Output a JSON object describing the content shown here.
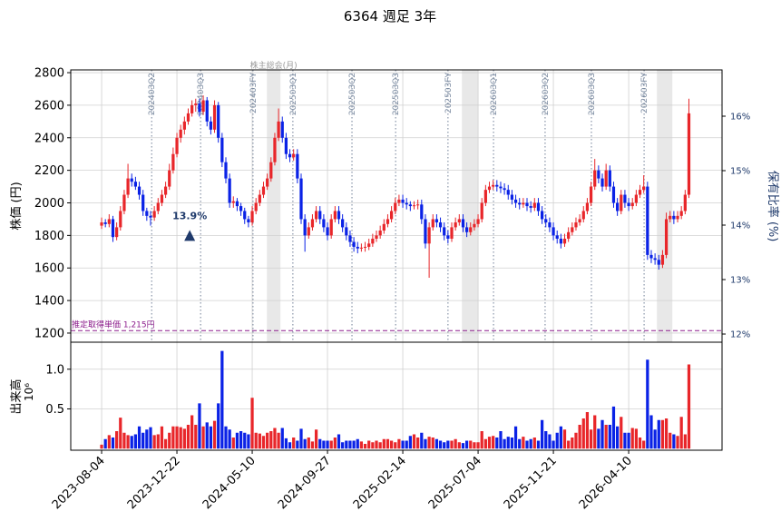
{
  "chart_data": {
    "type": "candlestick",
    "title": "6364 週足 3年",
    "ylabel": "株価 (円)",
    "y2label": "保有比率 (%)",
    "grid": true,
    "up_color": "#e8262a",
    "down_color": "#0a22e6",
    "xlim": [
      -8.2,
      164.8
    ],
    "xticks": [
      {
        "value": 0,
        "label": "2023-08-04"
      },
      {
        "value": 20,
        "label": "2023-12-22"
      },
      {
        "value": 40,
        "label": "2024-05-10"
      },
      {
        "value": 60,
        "label": "2024-09-27"
      },
      {
        "value": 80,
        "label": "2025-02-14"
      },
      {
        "value": 100,
        "label": "2025-07-04"
      },
      {
        "value": 120,
        "label": "2025-11-21"
      },
      {
        "value": 140,
        "label": "2026-04-10"
      }
    ],
    "ylim": [
      1144,
      2817
    ],
    "yticks": [
      1200,
      1400,
      1600,
      1800,
      2000,
      2200,
      2400,
      2600,
      2800
    ],
    "y2lim": [
      11.85,
      16.85
    ],
    "y2ticks": [
      {
        "value": 12,
        "label": "12%"
      },
      {
        "value": 13,
        "label": "13%"
      },
      {
        "value": 14,
        "label": "14%"
      },
      {
        "value": 15,
        "label": "15%"
      },
      {
        "value": 16,
        "label": "16%"
      }
    ],
    "ohlc": [
      [
        1860,
        1910,
        1840,
        1880
      ],
      [
        1880,
        1900,
        1850,
        1870
      ],
      [
        1870,
        1930,
        1850,
        1900
      ],
      [
        1900,
        1920,
        1760,
        1790
      ],
      [
        1790,
        1880,
        1770,
        1850
      ],
      [
        1850,
        1980,
        1830,
        1950
      ],
      [
        1950,
        2080,
        1930,
        2050
      ],
      [
        2050,
        2240,
        2030,
        2150
      ],
      [
        2150,
        2180,
        2100,
        2130
      ],
      [
        2130,
        2160,
        2080,
        2100
      ],
      [
        2100,
        2130,
        2020,
        2050
      ],
      [
        2050,
        2080,
        1920,
        1950
      ],
      [
        1950,
        1970,
        1890,
        1920
      ],
      [
        1920,
        1950,
        1860,
        1910
      ],
      [
        1910,
        1980,
        1890,
        1950
      ],
      [
        1950,
        2030,
        1930,
        2000
      ],
      [
        2000,
        2080,
        1980,
        2050
      ],
      [
        2050,
        2130,
        2030,
        2100
      ],
      [
        2100,
        2240,
        2080,
        2200
      ],
      [
        2200,
        2340,
        2180,
        2300
      ],
      [
        2300,
        2430,
        2280,
        2400
      ],
      [
        2400,
        2480,
        2370,
        2450
      ],
      [
        2450,
        2530,
        2420,
        2500
      ],
      [
        2500,
        2580,
        2480,
        2550
      ],
      [
        2550,
        2630,
        2530,
        2600
      ],
      [
        2600,
        2640,
        2560,
        2610
      ],
      [
        2610,
        2640,
        2530,
        2560
      ],
      [
        2560,
        2660,
        2540,
        2630
      ],
      [
        2630,
        2650,
        2470,
        2500
      ],
      [
        2500,
        2530,
        2420,
        2450
      ],
      [
        2450,
        2630,
        2430,
        2600
      ],
      [
        2600,
        2620,
        2370,
        2400
      ],
      [
        2400,
        2430,
        2220,
        2250
      ],
      [
        2250,
        2280,
        2120,
        2150
      ],
      [
        2150,
        2180,
        1970,
        2000
      ],
      [
        2000,
        2040,
        1970,
        2010
      ],
      [
        2010,
        2030,
        1950,
        1980
      ],
      [
        1980,
        2000,
        1920,
        1950
      ],
      [
        1950,
        1970,
        1870,
        1900
      ],
      [
        1900,
        1920,
        1850,
        1880
      ],
      [
        1880,
        1980,
        1860,
        1950
      ],
      [
        1950,
        2030,
        1930,
        2000
      ],
      [
        2000,
        2080,
        1980,
        2050
      ],
      [
        2050,
        2130,
        2030,
        2100
      ],
      [
        2100,
        2180,
        2080,
        2150
      ],
      [
        2150,
        2280,
        2130,
        2250
      ],
      [
        2250,
        2430,
        2230,
        2400
      ],
      [
        2400,
        2580,
        2380,
        2500
      ],
      [
        2500,
        2530,
        2370,
        2400
      ],
      [
        2400,
        2430,
        2270,
        2300
      ],
      [
        2300,
        2330,
        2250,
        2280
      ],
      [
        2280,
        2330,
        2260,
        2300
      ],
      [
        2300,
        2330,
        2120,
        2150
      ],
      [
        2150,
        2180,
        1870,
        1900
      ],
      [
        1900,
        1930,
        1700,
        1800
      ],
      [
        1800,
        1880,
        1780,
        1850
      ],
      [
        1850,
        1930,
        1830,
        1900
      ],
      [
        1900,
        1980,
        1880,
        1950
      ],
      [
        1950,
        1980,
        1870,
        1900
      ],
      [
        1900,
        1930,
        1820,
        1850
      ],
      [
        1850,
        1880,
        1770,
        1800
      ],
      [
        1800,
        1930,
        1780,
        1900
      ],
      [
        1900,
        1980,
        1880,
        1950
      ],
      [
        1950,
        1980,
        1870,
        1900
      ],
      [
        1900,
        1930,
        1820,
        1850
      ],
      [
        1850,
        1880,
        1770,
        1800
      ],
      [
        1800,
        1830,
        1730,
        1760
      ],
      [
        1760,
        1790,
        1700,
        1730
      ],
      [
        1730,
        1760,
        1690,
        1720
      ],
      [
        1720,
        1750,
        1700,
        1725
      ],
      [
        1725,
        1760,
        1700,
        1730
      ],
      [
        1730,
        1780,
        1710,
        1750
      ],
      [
        1750,
        1810,
        1730,
        1780
      ],
      [
        1780,
        1830,
        1760,
        1800
      ],
      [
        1800,
        1860,
        1780,
        1830
      ],
      [
        1830,
        1900,
        1810,
        1870
      ],
      [
        1870,
        1930,
        1850,
        1900
      ],
      [
        1900,
        1980,
        1880,
        1950
      ],
      [
        1950,
        2030,
        1930,
        2000
      ],
      [
        2000,
        2050,
        1980,
        2020
      ],
      [
        2020,
        2050,
        1970,
        2000
      ],
      [
        2000,
        2030,
        1960,
        1990
      ],
      [
        1990,
        2010,
        1950,
        1980
      ],
      [
        1980,
        2010,
        1960,
        1985
      ],
      [
        1985,
        2020,
        1960,
        1990
      ],
      [
        1990,
        2020,
        1870,
        1900
      ],
      [
        1900,
        1930,
        1720,
        1750
      ],
      [
        1750,
        1880,
        1540,
        1850
      ],
      [
        1850,
        1930,
        1830,
        1900
      ],
      [
        1900,
        1930,
        1850,
        1880
      ],
      [
        1880,
        1910,
        1820,
        1850
      ],
      [
        1850,
        1880,
        1770,
        1800
      ],
      [
        1800,
        1830,
        1750,
        1780
      ],
      [
        1780,
        1880,
        1760,
        1850
      ],
      [
        1850,
        1910,
        1830,
        1880
      ],
      [
        1880,
        1930,
        1860,
        1900
      ],
      [
        1900,
        1930,
        1820,
        1850
      ],
      [
        1850,
        1880,
        1790,
        1820
      ],
      [
        1820,
        1880,
        1800,
        1850
      ],
      [
        1850,
        1900,
        1830,
        1870
      ],
      [
        1870,
        1930,
        1850,
        1900
      ],
      [
        1900,
        2030,
        1880,
        2000
      ],
      [
        2000,
        2110,
        1980,
        2080
      ],
      [
        2080,
        2130,
        2060,
        2100
      ],
      [
        2100,
        2140,
        2080,
        2110
      ],
      [
        2110,
        2140,
        2070,
        2100
      ],
      [
        2100,
        2130,
        2060,
        2090
      ],
      [
        2090,
        2120,
        2050,
        2080
      ],
      [
        2080,
        2110,
        2020,
        2050
      ],
      [
        2050,
        2080,
        1990,
        2020
      ],
      [
        2020,
        2050,
        1970,
        2000
      ],
      [
        2000,
        2030,
        1960,
        1990
      ],
      [
        1990,
        2030,
        1970,
        2000
      ],
      [
        2000,
        2030,
        1950,
        1980
      ],
      [
        1980,
        2010,
        1940,
        1970
      ],
      [
        1970,
        2030,
        1950,
        2000
      ],
      [
        2000,
        2030,
        1920,
        1950
      ],
      [
        1950,
        1980,
        1870,
        1900
      ],
      [
        1900,
        1930,
        1850,
        1880
      ],
      [
        1880,
        1910,
        1820,
        1850
      ],
      [
        1850,
        1880,
        1770,
        1800
      ],
      [
        1800,
        1830,
        1750,
        1780
      ],
      [
        1780,
        1810,
        1720,
        1750
      ],
      [
        1750,
        1810,
        1730,
        1780
      ],
      [
        1780,
        1850,
        1760,
        1820
      ],
      [
        1820,
        1880,
        1800,
        1850
      ],
      [
        1850,
        1910,
        1830,
        1880
      ],
      [
        1880,
        1930,
        1860,
        1900
      ],
      [
        1900,
        1980,
        1880,
        1950
      ],
      [
        1950,
        2030,
        1930,
        2000
      ],
      [
        2000,
        2130,
        1980,
        2100
      ],
      [
        2100,
        2270,
        2080,
        2200
      ],
      [
        2200,
        2230,
        2120,
        2150
      ],
      [
        2150,
        2180,
        2070,
        2100
      ],
      [
        2100,
        2240,
        2080,
        2200
      ],
      [
        2200,
        2230,
        2070,
        2100
      ],
      [
        2100,
        2130,
        1970,
        2000
      ],
      [
        2000,
        2030,
        1920,
        1950
      ],
      [
        1950,
        2080,
        1930,
        2050
      ],
      [
        2050,
        2080,
        1970,
        2000
      ],
      [
        2000,
        2030,
        1950,
        1980
      ],
      [
        1980,
        2030,
        1960,
        2000
      ],
      [
        2000,
        2080,
        1980,
        2050
      ],
      [
        2050,
        2110,
        2030,
        2080
      ],
      [
        2080,
        2170,
        2060,
        2100
      ],
      [
        2100,
        2130,
        1650,
        1680
      ],
      [
        1680,
        1710,
        1630,
        1660
      ],
      [
        1660,
        1690,
        1620,
        1650
      ],
      [
        1650,
        1680,
        1590,
        1620
      ],
      [
        1620,
        1710,
        1600,
        1680
      ],
      [
        1680,
        1940,
        1660,
        1900
      ],
      [
        1900,
        1950,
        1880,
        1920
      ],
      [
        1920,
        1950,
        1870,
        1900
      ],
      [
        1900,
        1950,
        1880,
        1920
      ],
      [
        1920,
        1980,
        1900,
        1950
      ],
      [
        1950,
        2080,
        1930,
        2050
      ],
      [
        2050,
        2640,
        2030,
        2550
      ]
    ],
    "volume": {
      "label": "出来高",
      "offset_label": "10⁶",
      "ylim": [
        -0.02,
        1.34
      ],
      "yticks": [
        0.5,
        {
          "value": 1,
          "label": "1.0"
        }
      ],
      "values": [
        0.05,
        0.12,
        0.17,
        0.14,
        0.22,
        0.39,
        0.2,
        0.17,
        0.16,
        0.18,
        0.28,
        0.2,
        0.24,
        0.27,
        0.17,
        0.18,
        0.28,
        0.12,
        0.2,
        0.28,
        0.28,
        0.27,
        0.25,
        0.3,
        0.42,
        0.3,
        0.57,
        0.28,
        0.33,
        0.28,
        0.35,
        0.57,
        1.23,
        0.28,
        0.24,
        0.14,
        0.2,
        0.22,
        0.2,
        0.18,
        0.64,
        0.2,
        0.19,
        0.16,
        0.2,
        0.22,
        0.26,
        0.2,
        0.26,
        0.13,
        0.08,
        0.14,
        0.1,
        0.25,
        0.12,
        0.14,
        0.09,
        0.24,
        0.12,
        0.1,
        0.1,
        0.1,
        0.14,
        0.18,
        0.08,
        0.1,
        0.1,
        0.1,
        0.12,
        0.09,
        0.06,
        0.1,
        0.08,
        0.1,
        0.08,
        0.12,
        0.12,
        0.1,
        0.08,
        0.12,
        0.1,
        0.1,
        0.16,
        0.18,
        0.14,
        0.2,
        0.12,
        0.15,
        0.14,
        0.12,
        0.1,
        0.08,
        0.1,
        0.1,
        0.12,
        0.08,
        0.07,
        0.1,
        0.1,
        0.08,
        0.08,
        0.22,
        0.12,
        0.15,
        0.16,
        0.14,
        0.22,
        0.12,
        0.15,
        0.14,
        0.28,
        0.12,
        0.15,
        0.1,
        0.12,
        0.14,
        0.1,
        0.36,
        0.22,
        0.18,
        0.1,
        0.2,
        0.28,
        0.24,
        0.1,
        0.14,
        0.2,
        0.3,
        0.38,
        0.46,
        0.24,
        0.42,
        0.25,
        0.36,
        0.3,
        0.3,
        0.53,
        0.28,
        0.4,
        0.2,
        0.2,
        0.26,
        0.25,
        0.14,
        0.1,
        1.12,
        0.42,
        0.24,
        0.36,
        0.36,
        0.38,
        0.2,
        0.18,
        0.16,
        0.4,
        0.18,
        1.06
      ]
    },
    "events": [
      {
        "label": "202403Q2",
        "x": 13.3
      },
      {
        "label": "202403Q3",
        "x": 26.3
      },
      {
        "label": "202403FY",
        "x": 40.2
      },
      {
        "label": "202503Q1",
        "x": 50.8
      },
      {
        "label": "202503Q2",
        "x": 66.5
      },
      {
        "label": "202503Q3",
        "x": 78.1
      },
      {
        "label": "202503FY",
        "x": 92
      },
      {
        "label": "202603Q1",
        "x": 104.1
      },
      {
        "label": "202603Q2",
        "x": 117.8
      },
      {
        "label": "202603Q3",
        "x": 130.1
      },
      {
        "label": "202603FY",
        "x": 144.1
      }
    ],
    "shaded": {
      "label": "株主総会(月)",
      "ranges": [
        [
          43.9,
          47.5
        ],
        [
          95.7,
          100
        ],
        [
          147.5,
          151.6
        ]
      ]
    },
    "hline": {
      "value": 1215,
      "label": "推定取得単価 1,215円",
      "color": "#8b1a8b"
    },
    "marker": {
      "x": 23.4,
      "y": 1800,
      "label": "13.9%",
      "color": "#1f3a6b"
    }
  }
}
